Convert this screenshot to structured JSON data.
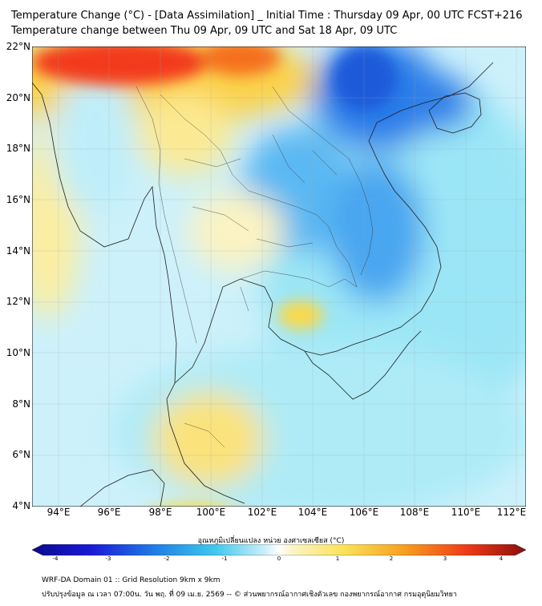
{
  "title_line1": "Temperature Change (°C) - [Data Assimilation] _ Initial Time : Thursday 09 Apr, 00 UTC FCST+216",
  "title_line2": "Temperature change between Thu 09 Apr, 09 UTC and Sat 18 Apr, 09 UTC",
  "lat_labels": [
    "22°N",
    "20°N",
    "18°N",
    "16°N",
    "14°N",
    "12°N",
    "10°N",
    "8°N",
    "6°N",
    "4°N"
  ],
  "lon_labels": [
    "94°E",
    "96°E",
    "98°E",
    "100°E",
    "102°E",
    "104°E",
    "106°E",
    "108°E",
    "110°E",
    "112°E"
  ],
  "colorbar_title": "อุณหภูมิเปลี่ยนแปลง หน่วย องศาเซลเซียส (°C)",
  "colorbar_ticks": [
    "-4",
    "-3",
    "-2",
    "-1",
    "0",
    "1",
    "2",
    "3",
    "4"
  ],
  "footer_line1": "WRF-DA Domain 01 :: Grid Resolution 9km x 9km",
  "footer_line2": "ปรับปรุงข้อมูล ณ เวลา 07:00น. วัน พฤ. ที่ 09 เม.ย. 2569 -- © ส่วนพยากรณ์อากาศเชิงตัวเลข กองพยากรณ์อากาศ กรมอุตุนิยมวิทยา"
}
